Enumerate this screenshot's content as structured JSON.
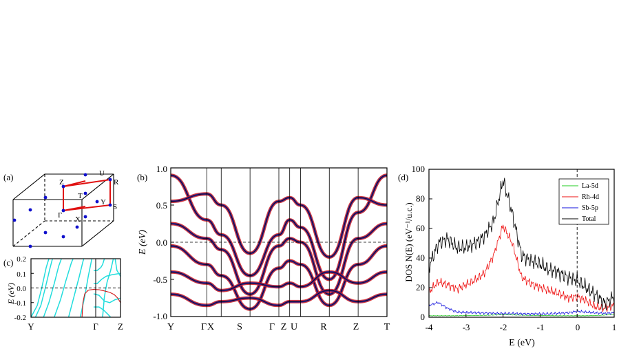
{
  "panels": {
    "a": {
      "label": "(a)",
      "points": [
        "U",
        "R",
        "Z",
        "T",
        "Y",
        "S",
        "Γ",
        "X"
      ]
    },
    "c": {
      "label": "(c)",
      "ylabel": "E (eV)",
      "yticks": [
        "0.2",
        "0.1",
        "0.0",
        "-0.1",
        "-0.2"
      ],
      "xticks": [
        "Y",
        "Γ",
        "Z"
      ]
    },
    "b": {
      "label": "(b)",
      "ylabel": "E (eV)",
      "yticks": [
        "1.0",
        "0.5",
        "0.0",
        "-0.5",
        "-1.0"
      ],
      "xticks": [
        "Y",
        "Γ",
        "X",
        "S",
        "Γ",
        "Z",
        "U",
        "R",
        "Z",
        "T"
      ]
    },
    "d": {
      "label": "(d)",
      "ylabel": "DOS N(E) (eV⁻¹/u.c.)",
      "xlabel": "E (eV)",
      "yticks": [
        "0",
        "20",
        "40",
        "60",
        "80",
        "100"
      ],
      "xticks": [
        "-4",
        "-3",
        "-2",
        "-1",
        "0",
        "1"
      ],
      "legend": [
        "La-5d",
        "Rh-4d",
        "Sb-5p",
        "Total"
      ]
    }
  },
  "colors": {
    "la": "#22cc22",
    "rh": "#ee1111",
    "sb": "#1111dd",
    "total": "#000000",
    "cyan": "#22dddd",
    "band_red": "#d01818",
    "band_blue": "#1c1c9c",
    "bz_red": "#e01010",
    "dot_blue": "#1010cc"
  },
  "chart_data": [
    {
      "type": "line",
      "panel": "c",
      "xlabel": "",
      "ylabel": "E (eV)",
      "ylim": [
        -0.2,
        0.2
      ],
      "xticks": [
        "Y",
        "Γ",
        "Z"
      ],
      "fermi_level": 0.0,
      "series": [
        {
          "values": [
            [
              0.0,
              -0.2
            ],
            [
              0.07,
              -0.12
            ],
            [
              0.12,
              0.0
            ],
            [
              0.17,
              0.14
            ],
            [
              0.2,
              0.2
            ]
          ]
        },
        {
          "values": [
            [
              0.05,
              -0.2
            ],
            [
              0.11,
              -0.12
            ],
            [
              0.16,
              0.0
            ],
            [
              0.21,
              0.13
            ],
            [
              0.24,
              0.2
            ]
          ]
        },
        {
          "values": [
            [
              0.14,
              -0.2
            ],
            [
              0.2,
              -0.1
            ],
            [
              0.26,
              0.03
            ],
            [
              0.31,
              0.15
            ],
            [
              0.34,
              0.2
            ]
          ]
        },
        {
          "values": [
            [
              0.26,
              -0.2
            ],
            [
              0.33,
              -0.08
            ],
            [
              0.39,
              0.05
            ],
            [
              0.45,
              0.17
            ],
            [
              0.47,
              0.2
            ]
          ]
        },
        {
          "values": [
            [
              0.42,
              -0.2
            ],
            [
              0.48,
              -0.06
            ],
            [
              0.54,
              0.08
            ],
            [
              0.58,
              0.18
            ],
            [
              0.59,
              0.2
            ]
          ]
        },
        {
          "values": [
            [
              0.55,
              -0.2
            ],
            [
              0.6,
              -0.06
            ],
            [
              0.64,
              0.08
            ],
            [
              0.68,
              0.2
            ]
          ]
        },
        {
          "values": [
            [
              0.8,
              -0.2
            ],
            [
              0.82,
              -0.06
            ],
            [
              0.85,
              0.04
            ],
            [
              0.89,
              0.12
            ],
            [
              0.92,
              0.2
            ]
          ]
        },
        {
          "values": [
            [
              0.7,
              0.12
            ],
            [
              0.74,
              0.12
            ],
            [
              0.78,
              0.14
            ],
            [
              0.8,
              0.16
            ],
            [
              0.82,
              0.2
            ]
          ]
        },
        {
          "values": [
            [
              0.7,
              0.03
            ],
            [
              0.74,
              0.03
            ],
            [
              0.79,
              0.06
            ],
            [
              0.84,
              0.08
            ],
            [
              0.9,
              0.09
            ],
            [
              1.0,
              0.1
            ]
          ]
        },
        {
          "values": [
            [
              0.7,
              -0.04
            ],
            [
              0.76,
              -0.05
            ],
            [
              0.82,
              -0.09
            ],
            [
              0.88,
              -0.1
            ],
            [
              0.94,
              -0.08
            ],
            [
              1.0,
              -0.07
            ]
          ]
        },
        {
          "values": [
            [
              0.7,
              -0.13
            ],
            [
              0.76,
              -0.13
            ],
            [
              0.81,
              -0.15
            ],
            [
              0.86,
              -0.18
            ],
            [
              0.89,
              -0.2
            ]
          ]
        },
        {
          "values": [
            [
              0.94,
              0.2
            ],
            [
              0.96,
              0.12
            ],
            [
              1.0,
              0.08
            ]
          ]
        },
        {
          "values": [
            [
              0.57,
              -0.2
            ],
            [
              0.58,
              -0.1
            ],
            [
              0.6,
              -0.04
            ],
            [
              0.64,
              -0.015
            ],
            [
              0.7,
              -0.01
            ],
            [
              0.76,
              -0.012
            ],
            [
              0.82,
              -0.02
            ],
            [
              0.88,
              -0.03
            ],
            [
              0.93,
              -0.045
            ],
            [
              0.97,
              -0.07
            ],
            [
              1.0,
              -0.1
            ]
          ]
        }
      ]
    },
    {
      "type": "line",
      "panel": "b",
      "xlabel": "",
      "ylabel": "E (eV)",
      "ylim": [
        -1.0,
        1.0
      ],
      "path": [
        "Y",
        "Γ",
        "X",
        "S",
        "Γ",
        "Z",
        "U",
        "R",
        "Z",
        "T"
      ],
      "k_positions": [
        0,
        1.0,
        1.4,
        2.2,
        3.0,
        3.3,
        3.6,
        4.4,
        5.2,
        6.0
      ],
      "fermi_level": 0.0,
      "series": [
        {
          "values": [
            [
              0,
              0.9
            ],
            [
              1.0,
              0.3
            ],
            [
              1.4,
              0.1
            ],
            [
              2.2,
              -0.45
            ],
            [
              3.0,
              0.1
            ],
            [
              3.3,
              0.3
            ],
            [
              3.6,
              0.2
            ],
            [
              4.4,
              -0.5
            ],
            [
              5.2,
              0.4
            ],
            [
              6.0,
              0.9
            ]
          ]
        },
        {
          "values": [
            [
              0,
              0.55
            ],
            [
              1.0,
              0.65
            ],
            [
              1.4,
              0.5
            ],
            [
              2.2,
              -0.15
            ],
            [
              3.0,
              0.55
            ],
            [
              3.3,
              0.6
            ],
            [
              3.6,
              0.5
            ],
            [
              4.4,
              -0.2
            ],
            [
              5.2,
              0.6
            ],
            [
              6.0,
              0.5
            ]
          ]
        },
        {
          "values": [
            [
              0,
              0.25
            ],
            [
              1.0,
              0.05
            ],
            [
              1.4,
              -0.1
            ],
            [
              2.2,
              -0.7
            ],
            [
              3.0,
              -0.05
            ],
            [
              3.3,
              0.05
            ],
            [
              3.6,
              0.0
            ],
            [
              4.4,
              -0.7
            ],
            [
              5.2,
              0.05
            ],
            [
              6.0,
              0.25
            ]
          ]
        },
        {
          "values": [
            [
              0,
              -0.05
            ],
            [
              1.0,
              -0.3
            ],
            [
              1.4,
              -0.45
            ],
            [
              2.2,
              -0.9
            ],
            [
              3.0,
              -0.35
            ],
            [
              3.3,
              -0.25
            ],
            [
              3.6,
              -0.3
            ],
            [
              4.4,
              -0.85
            ],
            [
              5.2,
              -0.3
            ],
            [
              6.0,
              -0.05
            ]
          ]
        },
        {
          "values": [
            [
              0,
              -0.4
            ],
            [
              1.0,
              -0.55
            ],
            [
              1.4,
              -0.65
            ],
            [
              2.2,
              -0.55
            ],
            [
              3.0,
              -0.6
            ],
            [
              3.3,
              -0.55
            ],
            [
              3.6,
              -0.6
            ],
            [
              4.4,
              -0.4
            ],
            [
              5.2,
              -0.55
            ],
            [
              6.0,
              -0.4
            ]
          ]
        },
        {
          "values": [
            [
              0,
              -0.7
            ],
            [
              1.0,
              -0.85
            ],
            [
              1.4,
              -0.8
            ],
            [
              2.2,
              -0.75
            ],
            [
              3.0,
              -0.85
            ],
            [
              3.3,
              -0.8
            ],
            [
              3.6,
              -0.8
            ],
            [
              4.4,
              -0.65
            ],
            [
              5.2,
              -0.8
            ],
            [
              6.0,
              -0.7
            ]
          ]
        }
      ]
    },
    {
      "type": "line",
      "panel": "d",
      "xlabel": "E (eV)",
      "ylabel": "DOS N(E) (eV⁻¹/u.c.)",
      "xlim": [
        -4,
        1
      ],
      "ylim": [
        0,
        100
      ],
      "fermi_level": 0,
      "legend_position": "top-right",
      "x": [
        -4.0,
        -3.75,
        -3.5,
        -3.25,
        -3.0,
        -2.75,
        -2.5,
        -2.25,
        -2.0,
        -1.75,
        -1.5,
        -1.25,
        -1.0,
        -0.75,
        -0.5,
        -0.25,
        0.0,
        0.25,
        0.5,
        0.75,
        1.0
      ],
      "series": [
        {
          "name": "La-5d",
          "values": [
            1.0,
            1.0,
            1.0,
            1.0,
            1.2,
            1.2,
            1.3,
            1.5,
            1.8,
            1.6,
            1.4,
            1.3,
            1.2,
            1.1,
            1.0,
            1.0,
            1.0,
            1.0,
            1.2,
            1.5,
            2.0
          ]
        },
        {
          "name": "Rh-4d",
          "values": [
            17,
            24,
            22,
            19,
            22,
            25,
            30,
            42,
            62,
            50,
            27,
            23,
            20,
            18,
            16,
            13,
            14,
            11,
            7,
            6,
            8
          ]
        },
        {
          "name": "Sb-5p",
          "values": [
            8,
            10,
            6,
            3.5,
            3.2,
            3.0,
            2.8,
            2.6,
            2.5,
            2.5,
            2.3,
            2.2,
            2.3,
            2.4,
            2.6,
            3.0,
            4.0,
            3.5,
            3.0,
            2.5,
            3.0
          ]
        },
        {
          "name": "Total",
          "values": [
            34,
            50,
            53,
            47,
            47,
            50,
            55,
            65,
            93,
            70,
            42,
            38,
            36,
            32,
            30,
            27,
            25,
            20,
            15,
            9,
            14
          ]
        }
      ]
    }
  ]
}
